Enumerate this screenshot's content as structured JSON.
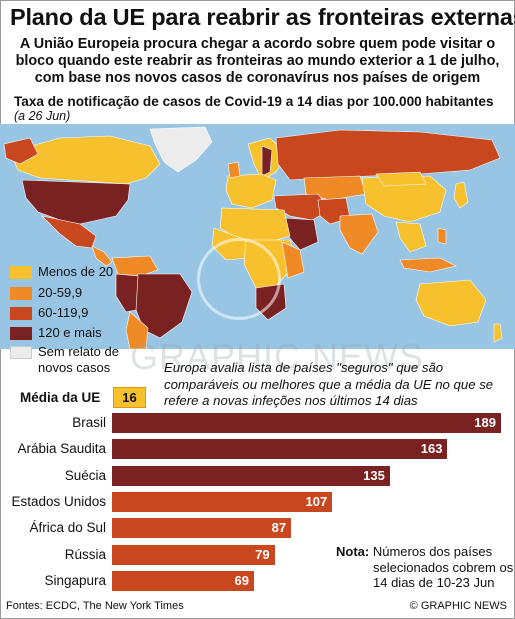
{
  "title": "Plano da UE para reabrir as fronteiras externas",
  "subtitle_lines": [
    "A União Europeia procura chegar a acordo sobre quem pode visitar o",
    "bloco quando este reabrir as fronteiras ao mundo exterior a 1 de julho,",
    "com base nos novos casos de coronavírus nos países de origem"
  ],
  "map": {
    "title": "Taxa de notificação de casos de Covid-19 a 14 dias por 100.000 habitantes",
    "date": "(a 26 Jun)",
    "colors": {
      "ocean": "#98c5e4",
      "band1": "#f7c02d",
      "band2": "#ef8a27",
      "band3": "#c9471f",
      "band4": "#7a2222",
      "no_data": "#ececec",
      "border": "#ffffff"
    }
  },
  "legend": [
    {
      "label": "Menos de 20",
      "color": "#f7c02d"
    },
    {
      "label": "20-59,9",
      "color": "#ef8a27"
    },
    {
      "label": "60-119,9",
      "color": "#c9471f"
    },
    {
      "label": "120 e mais",
      "color": "#7a2222"
    },
    {
      "label": "Sem relato de novos casos",
      "color": "#ececec"
    }
  ],
  "watermark": "GRAPHIC NEWS",
  "note_top": "Europa avalia lista de países \"seguros\" que são comparáveis ou melhores que a média da UE no que se refere a novas infeções nos últimos 14 dias",
  "eu_average": {
    "label": "Média da UE",
    "value": "16"
  },
  "chart_data": {
    "type": "bar",
    "orientation": "horizontal",
    "categories": [
      "Brasil",
      "Arábia Saudita",
      "Suécia",
      "Estados Unidos",
      "África do Sul",
      "Rússia",
      "Singapura"
    ],
    "values": [
      189,
      163,
      135,
      107,
      87,
      79,
      69
    ],
    "colors": [
      "#7a2222",
      "#7a2222",
      "#7a2222",
      "#c9471f",
      "#c9471f",
      "#c9471f",
      "#c9471f"
    ],
    "reference": {
      "label": "Média da UE",
      "value": 16
    }
  },
  "note_bottom": {
    "head": "Nota:",
    "lines": [
      "Números dos países",
      "selecionados cobrem os",
      "14 dias de 10-23 Jun"
    ]
  },
  "sources": "Fontes: ECDC, The New York Times",
  "credit": "© GRAPHIC NEWS"
}
